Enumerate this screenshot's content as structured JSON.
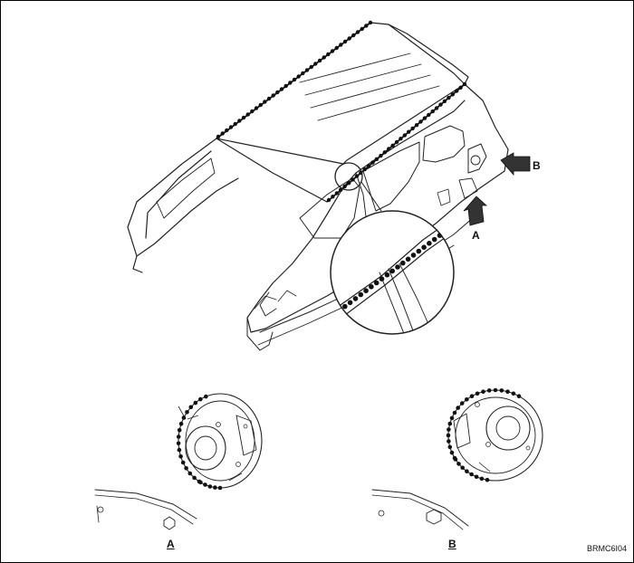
{
  "labels": {
    "arrow_a": "A",
    "arrow_b": "B",
    "detail_a": "A",
    "detail_b": "B",
    "figure_code": "BRMC6I04"
  },
  "colors": {
    "line": "#222222",
    "sealer_bead": "#111111",
    "arrow_fill": "#333333"
  }
}
